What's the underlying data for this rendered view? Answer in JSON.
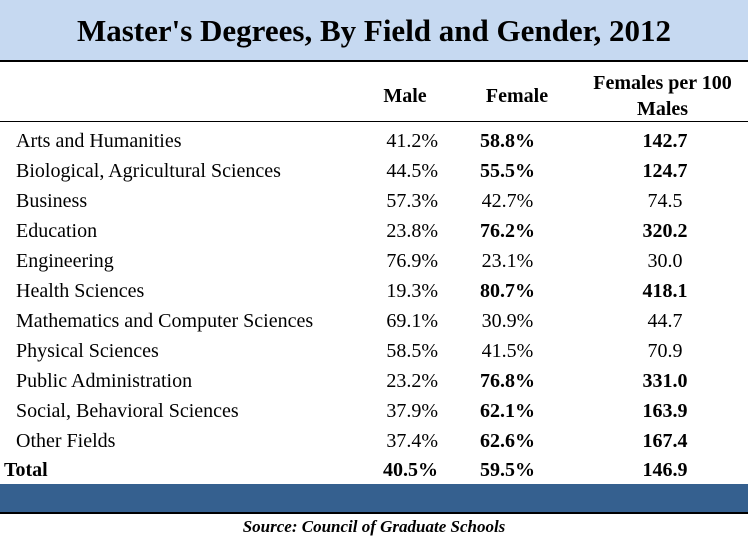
{
  "title": "Master's Degrees, By Field and Gender, 2012",
  "columns": {
    "male": "Male",
    "female": "Female",
    "ratio": "Females per 100 Males"
  },
  "rows": [
    {
      "field": "Arts and Humanities",
      "male": "41.2%",
      "female": "58.8%",
      "ratio": "142.7",
      "female_majority": true
    },
    {
      "field": "Biological, Agricultural Sciences",
      "male": "44.5%",
      "female": "55.5%",
      "ratio": "124.7",
      "female_majority": true
    },
    {
      "field": "Business",
      "male": "57.3%",
      "female": "42.7%",
      "ratio": "74.5",
      "female_majority": false
    },
    {
      "field": "Education",
      "male": "23.8%",
      "female": "76.2%",
      "ratio": "320.2",
      "female_majority": true
    },
    {
      "field": "Engineering",
      "male": "76.9%",
      "female": "23.1%",
      "ratio": "30.0",
      "female_majority": false
    },
    {
      "field": "Health Sciences",
      "male": "19.3%",
      "female": "80.7%",
      "ratio": "418.1",
      "female_majority": true
    },
    {
      "field": "Mathematics and Computer Sciences",
      "male": "69.1%",
      "female": "30.9%",
      "ratio": "44.7",
      "female_majority": false
    },
    {
      "field": "Physical Sciences",
      "male": "58.5%",
      "female": "41.5%",
      "ratio": "70.9",
      "female_majority": false
    },
    {
      "field": "Public Administration",
      "male": "23.2%",
      "female": "76.8%",
      "ratio": "331.0",
      "female_majority": true
    },
    {
      "field": "Social, Behavioral Sciences",
      "male": "37.9%",
      "female": "62.1%",
      "ratio": "163.9",
      "female_majority": true
    },
    {
      "field": "Other Fields",
      "male": "37.4%",
      "female": "62.6%",
      "ratio": "167.4",
      "female_majority": true
    }
  ],
  "total": {
    "field": "Total",
    "male": "40.5%",
    "female": "59.5%",
    "ratio": "146.9"
  },
  "source": "Source: Council of Graduate Schools",
  "colors": {
    "title_background": "#c6d9f1",
    "band": "#35608f"
  }
}
